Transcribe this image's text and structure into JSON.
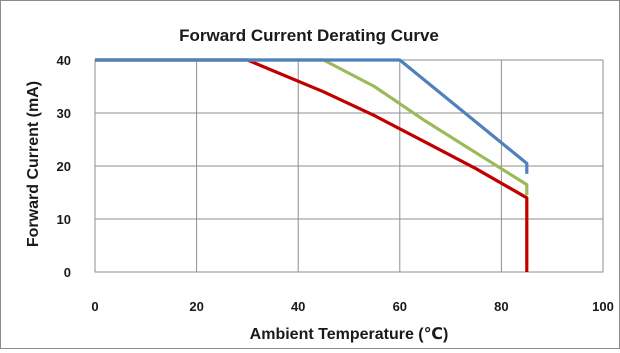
{
  "chart_data": {
    "type": "line",
    "title": "Forward Current Derating Curve",
    "xlabel": "Ambient Temperature (℃)",
    "ylabel": "Forward Current (mA)",
    "xlim": [
      0,
      100
    ],
    "ylim": [
      0,
      40
    ],
    "x_ticks": [
      "0",
      "20",
      "40",
      "60",
      "80",
      "100"
    ],
    "y_ticks": [
      "0",
      "10",
      "20",
      "30",
      "40"
    ],
    "grid": true,
    "legend": "none",
    "series": [
      {
        "color": "#c00000",
        "points": [
          [
            0,
            40
          ],
          [
            30,
            40
          ],
          [
            35,
            38
          ],
          [
            45,
            34
          ],
          [
            55,
            29.5
          ],
          [
            65,
            24.5
          ],
          [
            75,
            19.5
          ],
          [
            85,
            14
          ],
          [
            85,
            13.3
          ],
          [
            85,
            0
          ]
        ]
      },
      {
        "color": "#9bbb59",
        "points": [
          [
            0,
            40
          ],
          [
            45,
            40
          ],
          [
            55,
            35
          ],
          [
            65,
            28.5
          ],
          [
            75,
            22.5
          ],
          [
            85,
            16.5
          ],
          [
            85,
            14.5
          ]
        ]
      },
      {
        "color": "#4f81bd",
        "points": [
          [
            0,
            40
          ],
          [
            60,
            40
          ],
          [
            85,
            20.5
          ],
          [
            85,
            18.5
          ]
        ]
      }
    ]
  }
}
